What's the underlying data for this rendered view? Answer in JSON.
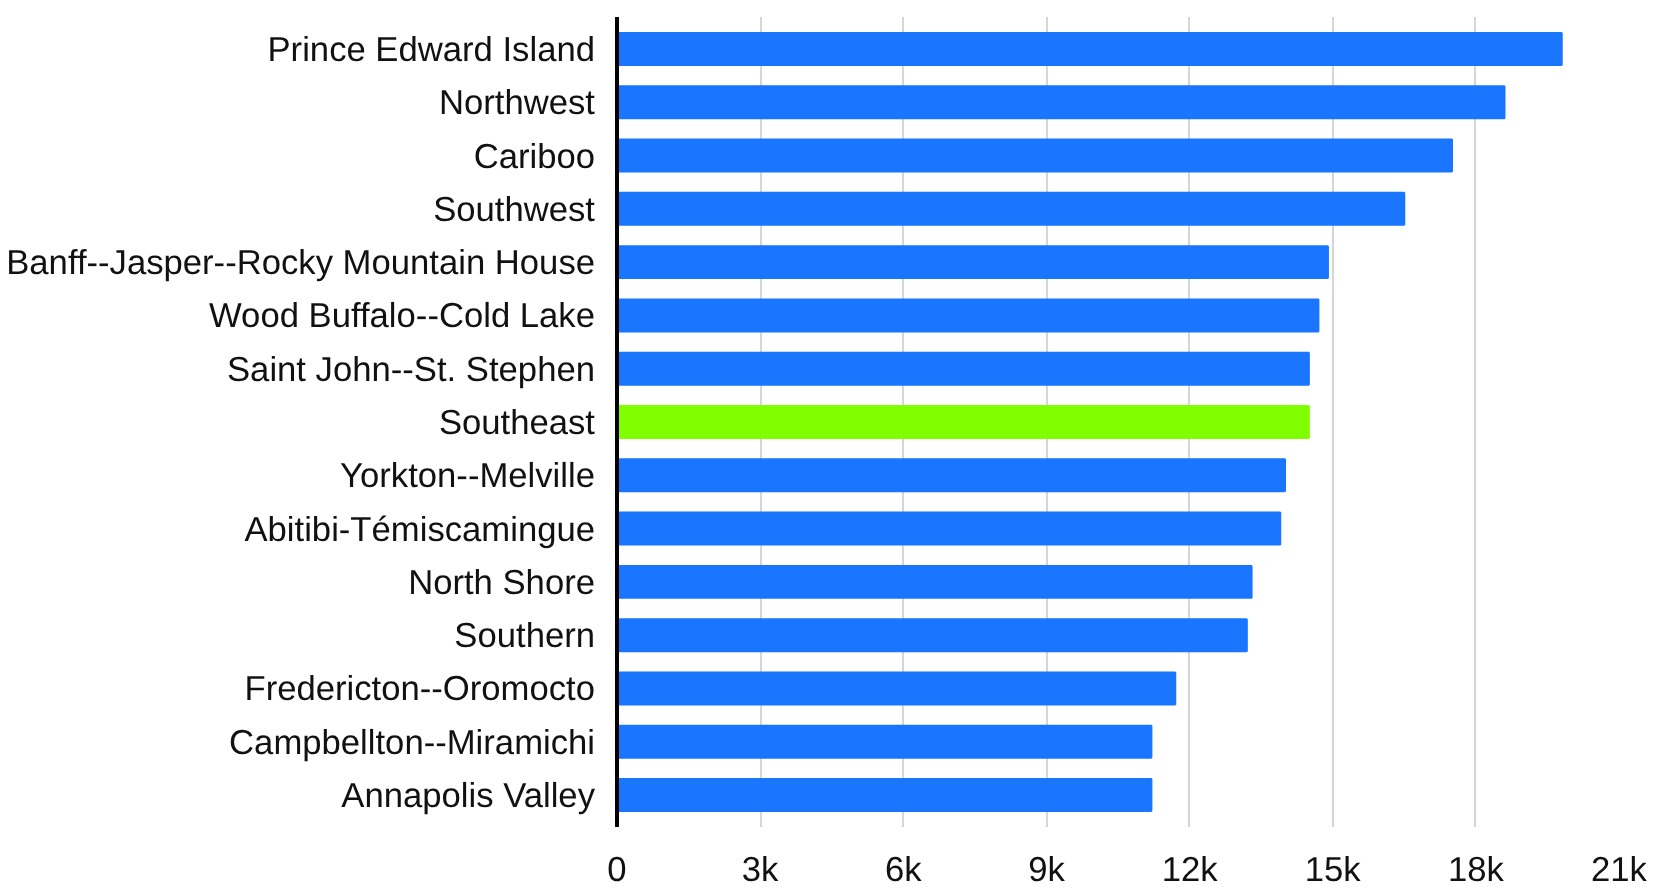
{
  "chart_data": {
    "type": "bar",
    "orientation": "horizontal",
    "categories": [
      "Prince Edward Island",
      "Northwest",
      "Cariboo",
      "Southwest",
      "Banff--Jasper--Rocky Mountain House",
      "Wood Buffalo--Cold Lake",
      "Saint John--St. Stephen",
      "Southeast",
      "Yorkton--Melville",
      "Abitibi-Témiscamingue",
      "North Shore",
      "Southern",
      "Fredericton--Oromocto",
      "Campbellton--Miramichi",
      "Annapolis Valley"
    ],
    "values": [
      19.8,
      18.6,
      17.5,
      16.5,
      14.9,
      14.7,
      14.5,
      14.5,
      14.0,
      13.9,
      13.3,
      13.2,
      11.7,
      11.2,
      11.2
    ],
    "colors": [
      "#1a75ff",
      "#1a75ff",
      "#1a75ff",
      "#1a75ff",
      "#1a75ff",
      "#1a75ff",
      "#1a75ff",
      "#80ff00",
      "#1a75ff",
      "#1a75ff",
      "#1a75ff",
      "#1a75ff",
      "#1a75ff",
      "#1a75ff",
      "#1a75ff"
    ],
    "xlim": [
      0,
      21
    ],
    "xticks": [
      0,
      {
        "value": 3,
        "label": "3k"
      },
      {
        "value": 6,
        "label": "6k"
      },
      {
        "value": 9,
        "label": "9k"
      },
      {
        "value": 12,
        "label": "12k"
      },
      {
        "value": 15,
        "label": "15k"
      },
      {
        "value": 18,
        "label": "18k"
      },
      {
        "value": 21,
        "label": "21k"
      }
    ],
    "grid": "x"
  }
}
